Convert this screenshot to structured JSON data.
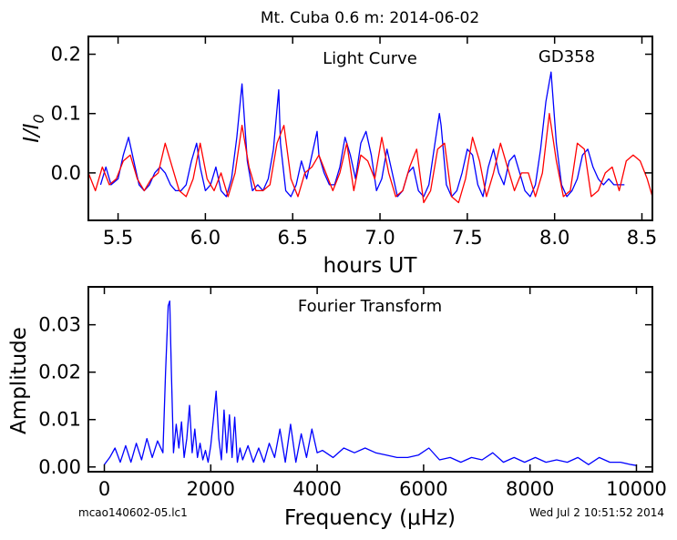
{
  "figure": {
    "title": "Mt. Cuba 0.6 m:  2014-06-02",
    "footer_left": "mcao140602-05.lc1",
    "footer_right": "Wed Jul  2 10:51:52 2014"
  },
  "chart_data": [
    {
      "type": "line",
      "title": "Light Curve",
      "annotation": "GD358",
      "xlabel": "hours UT",
      "ylabel": "I/I",
      "ylabel_sub": "0",
      "xlim": [
        5.33,
        8.56
      ],
      "ylim": [
        -0.08,
        0.23
      ],
      "xticks": [
        5.5,
        6.0,
        6.5,
        7.0,
        7.5,
        8.0,
        8.5
      ],
      "xtick_labels": [
        "5.5",
        "6.0",
        "6.5",
        "7.0",
        "7.5",
        "8.0",
        "8.5"
      ],
      "yticks": [
        0.0,
        0.1,
        0.2
      ],
      "ytick_labels": [
        "0.0",
        "0.1",
        "0.2"
      ],
      "grid": false,
      "series": [
        {
          "color": "#0000ff",
          "x": [
            5.4,
            5.43,
            5.46,
            5.5,
            5.53,
            5.56,
            5.59,
            5.62,
            5.65,
            5.68,
            5.71,
            5.74,
            5.77,
            5.8,
            5.83,
            5.86,
            5.89,
            5.92,
            5.95,
            5.97,
            6.0,
            6.03,
            6.06,
            6.09,
            6.12,
            6.15,
            6.18,
            6.21,
            6.24,
            6.27,
            6.3,
            6.33,
            6.36,
            6.39,
            6.42,
            6.43,
            6.46,
            6.49,
            6.52,
            6.55,
            6.58,
            6.61,
            6.64,
            6.65,
            6.68,
            6.71,
            6.74,
            6.77,
            6.8,
            6.83,
            6.86,
            6.89,
            6.92,
            6.95,
            6.98,
            7.01,
            7.04,
            7.07,
            7.1,
            7.13,
            7.16,
            7.19,
            7.22,
            7.25,
            7.28,
            7.31,
            7.34,
            7.35,
            7.38,
            7.41,
            7.44,
            7.47,
            7.5,
            7.53,
            7.56,
            7.59,
            7.62,
            7.65,
            7.68,
            7.71,
            7.74,
            7.77,
            7.8,
            7.83,
            7.86,
            7.89,
            7.92,
            7.95,
            7.98,
            8.01,
            8.04,
            8.07,
            8.1,
            8.13,
            8.16,
            8.19,
            8.22,
            8.25,
            8.28,
            8.31,
            8.34,
            8.37,
            8.4
          ],
          "y": [
            -0.02,
            0.01,
            -0.02,
            -0.01,
            0.03,
            0.06,
            0.02,
            -0.02,
            -0.03,
            -0.02,
            0.0,
            0.01,
            0.0,
            -0.02,
            -0.03,
            -0.03,
            -0.02,
            0.02,
            0.05,
            0.01,
            -0.03,
            -0.02,
            0.01,
            -0.03,
            -0.04,
            -0.01,
            0.06,
            0.15,
            0.02,
            -0.03,
            -0.02,
            -0.03,
            -0.01,
            0.04,
            0.14,
            0.05,
            -0.03,
            -0.04,
            -0.02,
            0.02,
            -0.01,
            0.03,
            0.07,
            0.03,
            0.0,
            -0.02,
            -0.02,
            0.01,
            0.06,
            0.03,
            -0.01,
            0.05,
            0.07,
            0.03,
            -0.03,
            -0.01,
            0.04,
            0.0,
            -0.04,
            -0.03,
            0.0,
            0.01,
            -0.03,
            -0.04,
            -0.02,
            0.04,
            0.1,
            0.08,
            -0.02,
            -0.04,
            -0.03,
            0.0,
            0.04,
            0.03,
            -0.02,
            -0.04,
            0.01,
            0.04,
            0.0,
            -0.02,
            0.02,
            0.03,
            0.0,
            -0.03,
            -0.04,
            -0.02,
            0.04,
            0.12,
            0.17,
            0.05,
            -0.02,
            -0.04,
            -0.03,
            -0.01,
            0.03,
            0.04,
            0.01,
            -0.01,
            -0.02,
            -0.01,
            -0.02,
            -0.02,
            -0.02
          ]
        },
        {
          "color": "#ff0000",
          "x": [
            5.33,
            5.37,
            5.41,
            5.45,
            5.49,
            5.53,
            5.57,
            5.61,
            5.65,
            5.69,
            5.73,
            5.77,
            5.81,
            5.85,
            5.89,
            5.93,
            5.97,
            6.01,
            6.05,
            6.09,
            6.13,
            6.17,
            6.21,
            6.25,
            6.29,
            6.33,
            6.37,
            6.41,
            6.45,
            6.49,
            6.53,
            6.57,
            6.61,
            6.65,
            6.69,
            6.73,
            6.77,
            6.81,
            6.85,
            6.89,
            6.93,
            6.97,
            7.01,
            7.05,
            7.09,
            7.13,
            7.17,
            7.21,
            7.25,
            7.29,
            7.33,
            7.37,
            7.41,
            7.45,
            7.49,
            7.53,
            7.57,
            7.61,
            7.65,
            7.69,
            7.73,
            7.77,
            7.81,
            7.85,
            7.89,
            7.93,
            7.97,
            8.01,
            8.05,
            8.09,
            8.13,
            8.17,
            8.21,
            8.25,
            8.29,
            8.33,
            8.37,
            8.41,
            8.45,
            8.49,
            8.53,
            8.56
          ],
          "y": [
            0.0,
            -0.03,
            0.01,
            -0.02,
            -0.01,
            0.02,
            0.03,
            -0.01,
            -0.03,
            -0.01,
            0.0,
            0.05,
            0.01,
            -0.03,
            -0.04,
            -0.01,
            0.05,
            -0.01,
            -0.03,
            0.0,
            -0.04,
            0.0,
            0.08,
            0.01,
            -0.03,
            -0.03,
            -0.02,
            0.05,
            0.08,
            -0.01,
            -0.04,
            0.0,
            0.01,
            0.03,
            0.0,
            -0.03,
            0.0,
            0.05,
            -0.03,
            0.03,
            0.02,
            -0.01,
            0.06,
            0.0,
            -0.04,
            -0.03,
            0.01,
            0.04,
            -0.05,
            -0.03,
            0.04,
            0.05,
            -0.04,
            -0.05,
            -0.01,
            0.06,
            0.02,
            -0.04,
            0.0,
            0.05,
            0.01,
            -0.03,
            0.0,
            0.0,
            -0.04,
            0.0,
            0.1,
            0.02,
            -0.04,
            -0.03,
            0.05,
            0.04,
            -0.04,
            -0.03,
            0.0,
            0.01,
            -0.03,
            0.02,
            0.03,
            0.02,
            -0.01,
            -0.04
          ]
        }
      ]
    },
    {
      "type": "line",
      "title": "Fourier Transform",
      "xlabel": "Frequency (μHz)",
      "ylabel": "Amplitude",
      "xlim": [
        -300,
        10300
      ],
      "ylim": [
        -0.001,
        0.038
      ],
      "xticks": [
        0,
        2000,
        4000,
        6000,
        8000,
        10000
      ],
      "xtick_labels": [
        "0",
        "2000",
        "4000",
        "6000",
        "8000",
        "10000"
      ],
      "yticks": [
        0.0,
        0.01,
        0.02,
        0.03
      ],
      "ytick_labels": [
        "0.00",
        "0.01",
        "0.02",
        "0.03"
      ],
      "grid": false,
      "series": [
        {
          "color": "#0000ff",
          "x": [
            0,
            100,
            200,
            300,
            400,
            500,
            600,
            700,
            800,
            900,
            1000,
            1100,
            1150,
            1200,
            1230,
            1260,
            1300,
            1350,
            1400,
            1450,
            1500,
            1550,
            1600,
            1650,
            1700,
            1750,
            1800,
            1850,
            1900,
            1950,
            2000,
            2050,
            2100,
            2150,
            2200,
            2250,
            2300,
            2350,
            2400,
            2450,
            2500,
            2550,
            2600,
            2700,
            2800,
            2900,
            3000,
            3100,
            3200,
            3300,
            3400,
            3500,
            3600,
            3700,
            3800,
            3900,
            4000,
            4100,
            4300,
            4500,
            4700,
            4900,
            5100,
            5300,
            5500,
            5700,
            5900,
            6100,
            6300,
            6500,
            6700,
            6900,
            7100,
            7300,
            7500,
            7700,
            7900,
            8100,
            8300,
            8500,
            8700,
            8900,
            9100,
            9300,
            9500,
            9700,
            9900,
            10000
          ],
          "y": [
            0.0005,
            0.002,
            0.004,
            0.001,
            0.0045,
            0.001,
            0.005,
            0.0015,
            0.006,
            0.002,
            0.0055,
            0.003,
            0.02,
            0.034,
            0.035,
            0.02,
            0.003,
            0.009,
            0.004,
            0.0095,
            0.002,
            0.006,
            0.013,
            0.003,
            0.008,
            0.002,
            0.005,
            0.0015,
            0.0035,
            0.001,
            0.0045,
            0.01,
            0.016,
            0.006,
            0.0015,
            0.012,
            0.003,
            0.011,
            0.002,
            0.0105,
            0.001,
            0.004,
            0.0015,
            0.0045,
            0.001,
            0.004,
            0.001,
            0.005,
            0.002,
            0.008,
            0.001,
            0.009,
            0.001,
            0.007,
            0.002,
            0.008,
            0.003,
            0.0035,
            0.002,
            0.004,
            0.003,
            0.004,
            0.003,
            0.0025,
            0.002,
            0.002,
            0.0025,
            0.004,
            0.0015,
            0.002,
            0.001,
            0.002,
            0.0015,
            0.003,
            0.001,
            0.002,
            0.001,
            0.002,
            0.001,
            0.0015,
            0.001,
            0.002,
            0.0005,
            0.002,
            0.001,
            0.001,
            0.0005,
            0.0003
          ]
        }
      ]
    }
  ]
}
